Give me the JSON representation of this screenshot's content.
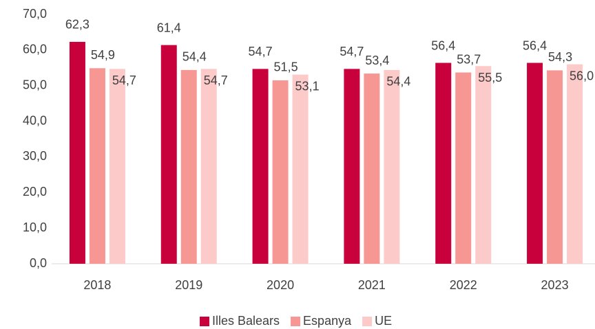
{
  "chart_data": {
    "type": "bar",
    "categories": [
      "2018",
      "2019",
      "2020",
      "2021",
      "2022",
      "2023"
    ],
    "series": [
      {
        "name": "Illes Balears",
        "color": "#c8003c",
        "values": [
          62.3,
          61.4,
          54.7,
          54.7,
          56.4,
          56.4
        ],
        "value_labels": [
          "62,3",
          "61,4",
          "54,7",
          "54,7",
          "56,4",
          "56,4"
        ]
      },
      {
        "name": "Espanya",
        "color": "#f79793",
        "values": [
          54.9,
          54.4,
          51.5,
          53.4,
          53.7,
          54.3
        ],
        "value_labels": [
          "54,9",
          "54,4",
          "51,5",
          "53,4",
          "53,7",
          "54,3"
        ]
      },
      {
        "name": "UE",
        "color": "#fdcaca",
        "values": [
          54.7,
          54.7,
          53.1,
          54.4,
          55.5,
          56.0
        ],
        "value_labels": [
          "54,7",
          "54,7",
          "53,1",
          "54,4",
          "55,5",
          "56,0"
        ]
      }
    ],
    "ylim": [
      0,
      70
    ],
    "yticks": [
      {
        "value": 0,
        "label": "0,0"
      },
      {
        "value": 10,
        "label": "10,0"
      },
      {
        "value": 20,
        "label": "20,0"
      },
      {
        "value": 30,
        "label": "30,0"
      },
      {
        "value": 40,
        "label": "40,0"
      },
      {
        "value": 50,
        "label": "50,0"
      },
      {
        "value": 60,
        "label": "60,0"
      },
      {
        "value": 70,
        "label": "70,0"
      }
    ],
    "legend": "bottom"
  }
}
